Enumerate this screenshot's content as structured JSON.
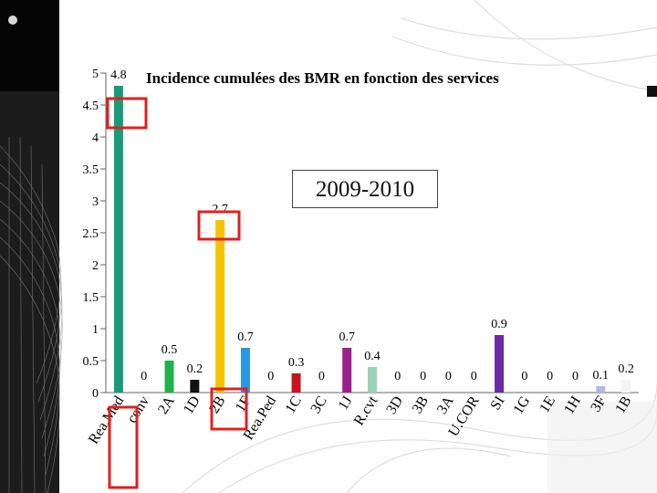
{
  "title": "Incidence cumulées des BMR en fonction des services",
  "period": "2009-2010",
  "chart_data": {
    "type": "bar",
    "title": "Incidence cumulées des BMR en fonction des services",
    "subtitle": "2009-2010",
    "ylim": [
      0,
      5
    ],
    "yticks": [
      "0",
      "0.5",
      "1",
      "1.5",
      "2",
      "2.5",
      "3",
      "3.5",
      "4",
      "4.5",
      "5"
    ],
    "grid": false,
    "categories": [
      "Rea.Med",
      "conv",
      "2A",
      "1D",
      "2B",
      "1F",
      "Rea.Ped",
      "1C",
      "3C",
      "1J",
      "R.cvt",
      "3D",
      "3B",
      "3A",
      "U.COR",
      "SI",
      "1G",
      "1E",
      "1H",
      "3F",
      "1B"
    ],
    "values": [
      4.8,
      0,
      0.5,
      0.2,
      2.7,
      0.7,
      0,
      0.3,
      0,
      0.7,
      0.4,
      0,
      0,
      0,
      0,
      0.9,
      0,
      0,
      0,
      0.1,
      0.2
    ],
    "value_labels": [
      "4.8",
      "0",
      "0.5",
      "0.2",
      "2.7",
      "0.7",
      "0",
      "0.3",
      "0",
      "0.7",
      "0.4",
      "0",
      "0",
      "0",
      "0",
      "0.9",
      "0",
      "0",
      "0",
      "0.1",
      "0.2"
    ],
    "colors": [
      "#1a9b78",
      "#1a9b78",
      "#22b14c",
      "#111111",
      "#f5c400",
      "#2997e0",
      "#2997e0",
      "#c8141e",
      "#c8141e",
      "#9b1f8f",
      "#9fd1b7",
      "#9fd1b7",
      "#9fd1b7",
      "#9fd1b7",
      "#9fd1b7",
      "#6a2ca0",
      "#6a2ca0",
      "#6a2ca0",
      "#6a2ca0",
      "#b0b8e8",
      "#f4f4f4"
    ],
    "highlight_color": "#e02020"
  }
}
